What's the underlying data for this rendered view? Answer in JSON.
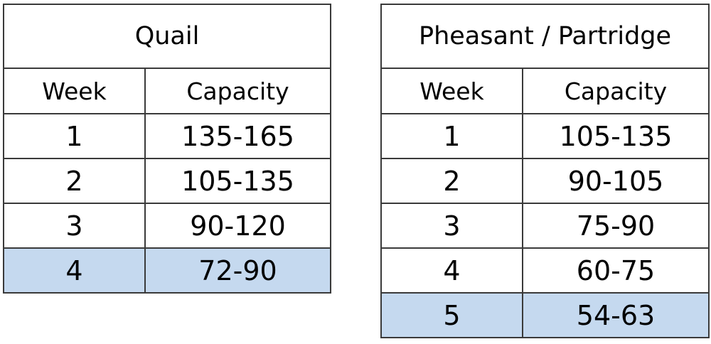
{
  "tables": [
    {
      "title": "Quail",
      "headers": [
        "Week",
        "Capacity"
      ],
      "rows": [
        [
          "1",
          "135-165"
        ],
        [
          "2",
          "105-135"
        ],
        [
          "3",
          "90-120"
        ],
        [
          "4",
          "72-90"
        ]
      ],
      "highlighted_row_index": 3
    },
    {
      "title": "Pheasant / Partridge",
      "headers": [
        "Week",
        "Capacity"
      ],
      "rows": [
        [
          "1",
          "105-135"
        ],
        [
          "2",
          "90-105"
        ],
        [
          "3",
          "75-90"
        ],
        [
          "4",
          "60-75"
        ],
        [
          "5",
          "54-63"
        ]
      ],
      "highlighted_row_index": 4
    }
  ],
  "colors": {
    "highlight": "#c5d9ef",
    "border": "#3a3a3a",
    "text": "#000000",
    "background": "#ffffff"
  }
}
